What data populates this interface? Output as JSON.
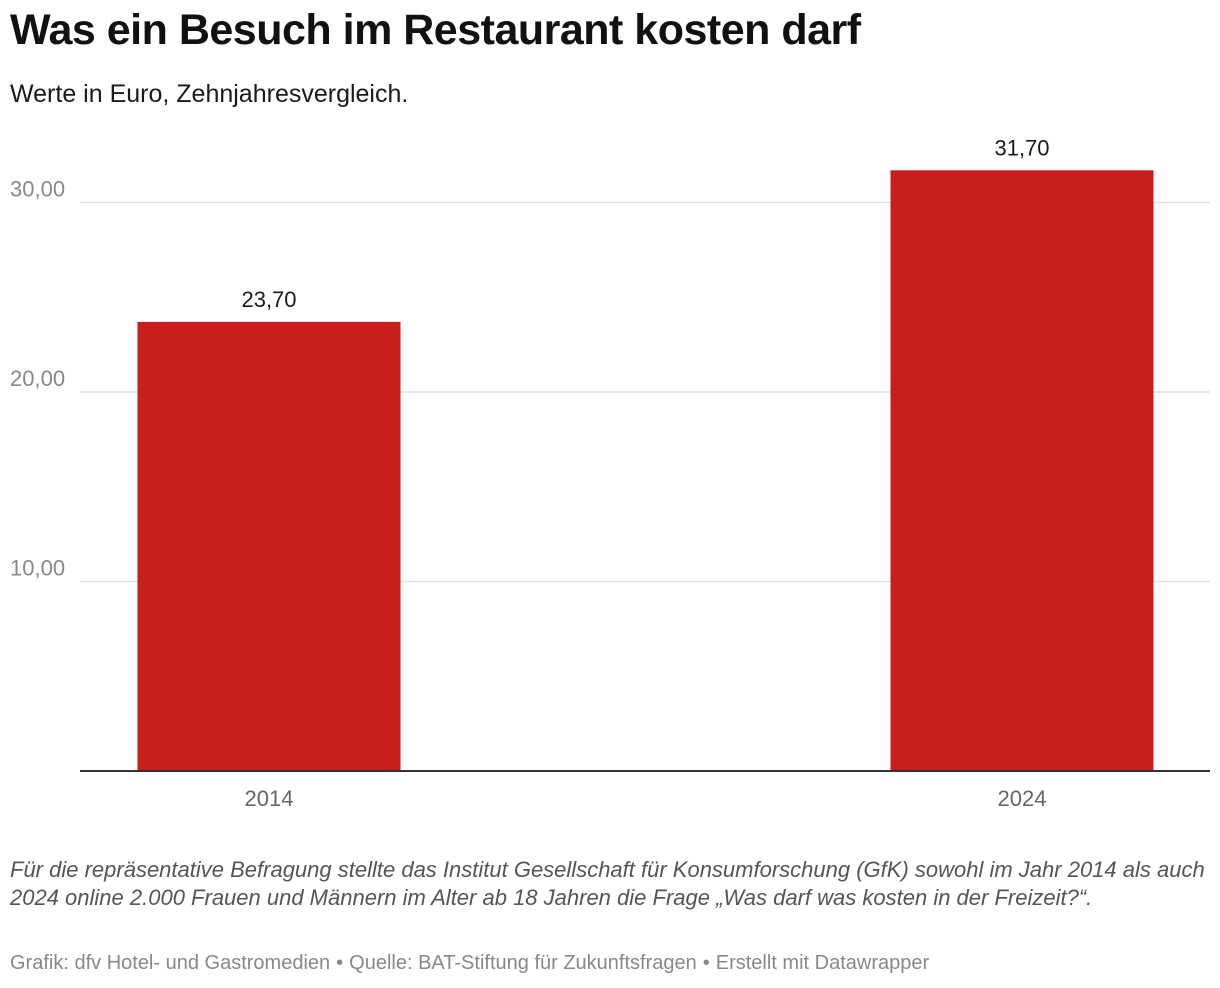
{
  "chart_data": {
    "type": "bar",
    "title": "Was ein Besuch im Restaurant kosten darf",
    "subtitle": "Werte in Euro, Zehnjahresvergleich.",
    "categories": [
      "2014",
      "2024"
    ],
    "values": [
      23.7,
      31.7
    ],
    "value_labels": [
      "23,70",
      "31,70"
    ],
    "yticks": [
      10,
      20,
      30
    ],
    "ytick_labels": [
      "10,00",
      "20,00",
      "30,00"
    ],
    "ylim": [
      0,
      33.5
    ],
    "xlabel": "",
    "ylabel": "",
    "grid": true,
    "legend": "none"
  },
  "colors": {
    "bar": "#c81e1e",
    "grid": "#e0e0e0",
    "axis": "#333333",
    "tick_text": "#888888",
    "category_text": "#666666",
    "value_text": "#1a1a1a"
  },
  "note": "Für die repräsentative Befragung stellte das Institut Gesellschaft für Konsumforschung (GfK) sowohl im Jahr 2014 als auch 2024 online 2.000 Frauen und Männern im Alter ab 18 Jahren die Frage „Was darf was kosten in der Freizeit?“.",
  "footer": {
    "grafik": "Grafik: dfv Hotel- und Gastromedien",
    "separator": "•",
    "quelle": "Quelle: BAT-Stiftung für Zukunftsfragen",
    "credit": "Erstellt mit Datawrapper"
  }
}
